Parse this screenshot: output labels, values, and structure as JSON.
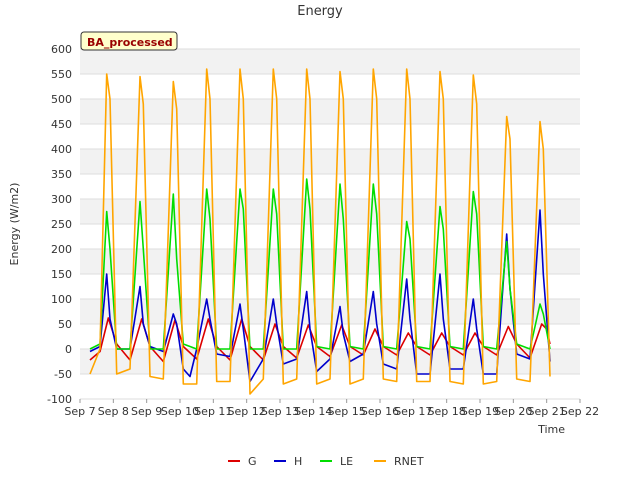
{
  "chart_data": {
    "type": "line",
    "title": "Energy",
    "badge": "BA_processed",
    "xlabel": "Time",
    "ylabel": "Energy (W/m2)",
    "ylim": [
      -100,
      600
    ],
    "yticks": [
      -100,
      -50,
      0,
      50,
      100,
      150,
      200,
      250,
      300,
      350,
      400,
      450,
      500,
      550,
      600
    ],
    "xlim": [
      7,
      22
    ],
    "xticks": [
      {
        "v": 7,
        "label": "Sep 7"
      },
      {
        "v": 8,
        "label": "Sep 8"
      },
      {
        "v": 9,
        "label": "Sep 9"
      },
      {
        "v": 10,
        "label": "Sep 10"
      },
      {
        "v": 11,
        "label": "Sep 11"
      },
      {
        "v": 12,
        "label": "Sep 12"
      },
      {
        "v": 13,
        "label": "Sep 13"
      },
      {
        "v": 14,
        "label": "Sep 14"
      },
      {
        "v": 15,
        "label": "Sep 15"
      },
      {
        "v": 16,
        "label": "Sep 16"
      },
      {
        "v": 17,
        "label": "Sep 17"
      },
      {
        "v": 18,
        "label": "Sep 18"
      },
      {
        "v": 19,
        "label": "Sep 19"
      },
      {
        "v": 20,
        "label": "Sep 20"
      },
      {
        "v": 21,
        "label": "Sep 21"
      },
      {
        "v": 22,
        "label": "Sep 22"
      }
    ],
    "grid": "horizontal bands",
    "legend_position": "bottom",
    "series": [
      {
        "name": "G",
        "color": "#dd0000",
        "points": [
          [
            7.3,
            -22
          ],
          [
            7.6,
            -5
          ],
          [
            7.85,
            62
          ],
          [
            8.1,
            10
          ],
          [
            8.5,
            -22
          ],
          [
            8.85,
            60
          ],
          [
            9.1,
            5
          ],
          [
            9.5,
            -25
          ],
          [
            9.85,
            58
          ],
          [
            10.1,
            5
          ],
          [
            10.5,
            -20
          ],
          [
            10.85,
            60
          ],
          [
            11.1,
            5
          ],
          [
            11.5,
            -22
          ],
          [
            11.85,
            60
          ],
          [
            12.1,
            5
          ],
          [
            12.5,
            -22
          ],
          [
            12.85,
            50
          ],
          [
            13.1,
            5
          ],
          [
            13.5,
            -18
          ],
          [
            13.85,
            48
          ],
          [
            14.1,
            5
          ],
          [
            14.5,
            -15
          ],
          [
            14.85,
            48
          ],
          [
            15.1,
            5
          ],
          [
            15.5,
            -12
          ],
          [
            15.85,
            40
          ],
          [
            16.1,
            5
          ],
          [
            16.5,
            -12
          ],
          [
            16.85,
            32
          ],
          [
            17.1,
            5
          ],
          [
            17.5,
            -12
          ],
          [
            17.85,
            32
          ],
          [
            18.1,
            5
          ],
          [
            18.5,
            -12
          ],
          [
            18.85,
            32
          ],
          [
            19.1,
            5
          ],
          [
            19.5,
            -12
          ],
          [
            19.85,
            45
          ],
          [
            20.1,
            10
          ],
          [
            20.5,
            -18
          ],
          [
            20.85,
            50
          ],
          [
            21.0,
            40
          ],
          [
            21.1,
            10
          ]
        ]
      },
      {
        "name": "H",
        "color": "#0000cc",
        "points": [
          [
            7.3,
            -5
          ],
          [
            7.6,
            5
          ],
          [
            7.8,
            150
          ],
          [
            7.9,
            60
          ],
          [
            8.1,
            0
          ],
          [
            8.5,
            0
          ],
          [
            8.8,
            125
          ],
          [
            8.9,
            50
          ],
          [
            9.1,
            5
          ],
          [
            9.5,
            -5
          ],
          [
            9.8,
            70
          ],
          [
            9.9,
            50
          ],
          [
            10.1,
            -40
          ],
          [
            10.3,
            -55
          ],
          [
            10.5,
            0
          ],
          [
            10.8,
            100
          ],
          [
            10.9,
            60
          ],
          [
            11.1,
            -10
          ],
          [
            11.5,
            -15
          ],
          [
            11.8,
            90
          ],
          [
            11.9,
            40
          ],
          [
            12.1,
            -65
          ],
          [
            12.5,
            -20
          ],
          [
            12.8,
            100
          ],
          [
            12.9,
            50
          ],
          [
            13.1,
            -30
          ],
          [
            13.5,
            -20
          ],
          [
            13.8,
            115
          ],
          [
            13.9,
            40
          ],
          [
            14.1,
            -45
          ],
          [
            14.5,
            -20
          ],
          [
            14.8,
            85
          ],
          [
            14.9,
            30
          ],
          [
            15.1,
            -25
          ],
          [
            15.5,
            -10
          ],
          [
            15.8,
            115
          ],
          [
            15.9,
            50
          ],
          [
            16.1,
            -30
          ],
          [
            16.5,
            -40
          ],
          [
            16.8,
            140
          ],
          [
            16.9,
            60
          ],
          [
            17.1,
            -50
          ],
          [
            17.5,
            -50
          ],
          [
            17.8,
            150
          ],
          [
            17.9,
            60
          ],
          [
            18.1,
            -40
          ],
          [
            18.5,
            -40
          ],
          [
            18.8,
            100
          ],
          [
            18.9,
            40
          ],
          [
            19.1,
            -50
          ],
          [
            19.5,
            -50
          ],
          [
            19.8,
            230
          ],
          [
            19.9,
            120
          ],
          [
            20.1,
            -10
          ],
          [
            20.5,
            -20
          ],
          [
            20.8,
            278
          ],
          [
            20.9,
            150
          ],
          [
            21.1,
            -25
          ]
        ]
      },
      {
        "name": "LE",
        "color": "#00dd00",
        "points": [
          [
            7.3,
            0
          ],
          [
            7.6,
            10
          ],
          [
            7.8,
            275
          ],
          [
            7.9,
            200
          ],
          [
            8.1,
            0
          ],
          [
            8.5,
            0
          ],
          [
            8.8,
            295
          ],
          [
            8.9,
            200
          ],
          [
            9.1,
            0
          ],
          [
            9.5,
            0
          ],
          [
            9.8,
            310
          ],
          [
            9.9,
            180
          ],
          [
            10.1,
            10
          ],
          [
            10.5,
            0
          ],
          [
            10.8,
            320
          ],
          [
            10.9,
            260
          ],
          [
            11.1,
            0
          ],
          [
            11.5,
            0
          ],
          [
            11.8,
            320
          ],
          [
            11.9,
            280
          ],
          [
            12.1,
            0
          ],
          [
            12.5,
            0
          ],
          [
            12.8,
            320
          ],
          [
            12.9,
            270
          ],
          [
            13.1,
            0
          ],
          [
            13.5,
            0
          ],
          [
            13.8,
            340
          ],
          [
            13.9,
            280
          ],
          [
            14.1,
            5
          ],
          [
            14.5,
            0
          ],
          [
            14.8,
            330
          ],
          [
            14.9,
            260
          ],
          [
            15.1,
            5
          ],
          [
            15.5,
            0
          ],
          [
            15.8,
            330
          ],
          [
            15.9,
            270
          ],
          [
            16.1,
            5
          ],
          [
            16.5,
            0
          ],
          [
            16.8,
            255
          ],
          [
            16.9,
            220
          ],
          [
            17.1,
            5
          ],
          [
            17.5,
            0
          ],
          [
            17.8,
            285
          ],
          [
            17.9,
            240
          ],
          [
            18.1,
            5
          ],
          [
            18.5,
            0
          ],
          [
            18.8,
            315
          ],
          [
            18.9,
            270
          ],
          [
            19.1,
            5
          ],
          [
            19.5,
            0
          ],
          [
            19.8,
            215
          ],
          [
            19.9,
            120
          ],
          [
            20.1,
            10
          ],
          [
            20.5,
            0
          ],
          [
            20.8,
            90
          ],
          [
            20.9,
            70
          ],
          [
            21.1,
            0
          ]
        ]
      },
      {
        "name": "RNET",
        "color": "#ffa500",
        "points": [
          [
            7.3,
            -50
          ],
          [
            7.6,
            0
          ],
          [
            7.8,
            550
          ],
          [
            7.9,
            500
          ],
          [
            8.1,
            -50
          ],
          [
            8.5,
            -40
          ],
          [
            8.8,
            545
          ],
          [
            8.9,
            490
          ],
          [
            9.1,
            -55
          ],
          [
            9.5,
            -60
          ],
          [
            9.8,
            535
          ],
          [
            9.9,
            480
          ],
          [
            10.1,
            -70
          ],
          [
            10.5,
            -70
          ],
          [
            10.8,
            560
          ],
          [
            10.9,
            500
          ],
          [
            11.1,
            -65
          ],
          [
            11.5,
            -65
          ],
          [
            11.8,
            560
          ],
          [
            11.9,
            500
          ],
          [
            12.1,
            -90
          ],
          [
            12.5,
            -60
          ],
          [
            12.8,
            560
          ],
          [
            12.9,
            500
          ],
          [
            13.1,
            -70
          ],
          [
            13.5,
            -60
          ],
          [
            13.8,
            560
          ],
          [
            13.9,
            500
          ],
          [
            14.1,
            -70
          ],
          [
            14.5,
            -60
          ],
          [
            14.8,
            555
          ],
          [
            14.9,
            500
          ],
          [
            15.1,
            -70
          ],
          [
            15.5,
            -60
          ],
          [
            15.8,
            560
          ],
          [
            15.9,
            500
          ],
          [
            16.1,
            -60
          ],
          [
            16.5,
            -65
          ],
          [
            16.8,
            560
          ],
          [
            16.9,
            500
          ],
          [
            17.1,
            -65
          ],
          [
            17.5,
            -65
          ],
          [
            17.8,
            555
          ],
          [
            17.9,
            500
          ],
          [
            18.1,
            -65
          ],
          [
            18.5,
            -70
          ],
          [
            18.8,
            548
          ],
          [
            18.9,
            490
          ],
          [
            19.1,
            -70
          ],
          [
            19.5,
            -65
          ],
          [
            19.8,
            465
          ],
          [
            19.9,
            420
          ],
          [
            20.1,
            -60
          ],
          [
            20.5,
            -65
          ],
          [
            20.8,
            455
          ],
          [
            20.9,
            400
          ],
          [
            21.1,
            -55
          ]
        ]
      }
    ]
  }
}
